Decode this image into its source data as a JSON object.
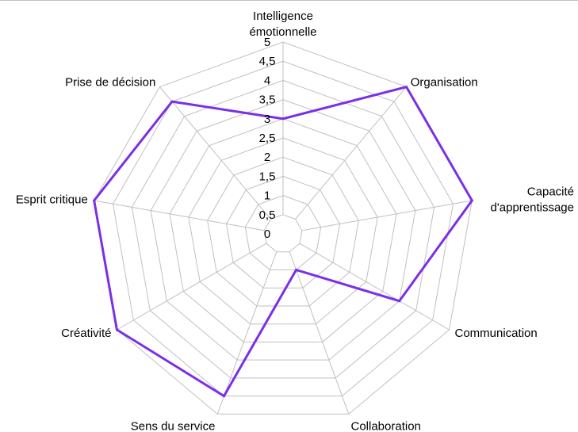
{
  "chart_data": {
    "type": "radar",
    "categories": [
      [
        "Intelligence",
        "émotionnelle"
      ],
      [
        "Organisation"
      ],
      [
        "Capacité",
        "d'apprentissage"
      ],
      [
        "Communication"
      ],
      [
        "Collaboration"
      ],
      [
        "Sens du service"
      ],
      [
        "Créativité"
      ],
      [
        "Esprit critique"
      ],
      [
        "Prise de décision"
      ]
    ],
    "series": [
      {
        "values": [
          3,
          5,
          5,
          3.5,
          1,
          4.5,
          5,
          5,
          4.5
        ],
        "color": "#7b2fe6"
      }
    ],
    "rlim": [
      0,
      5
    ],
    "ticks": [
      0,
      0.5,
      1,
      1.5,
      2,
      2.5,
      3,
      3.5,
      4,
      4.5,
      5
    ],
    "tick_labels": [
      "0",
      "0,5",
      "1",
      "1,5",
      "2",
      "2,5",
      "3",
      "3,5",
      "4",
      "4,5",
      "5"
    ],
    "grid": true,
    "grid_color": "#c0c0c0",
    "legend": "none"
  }
}
